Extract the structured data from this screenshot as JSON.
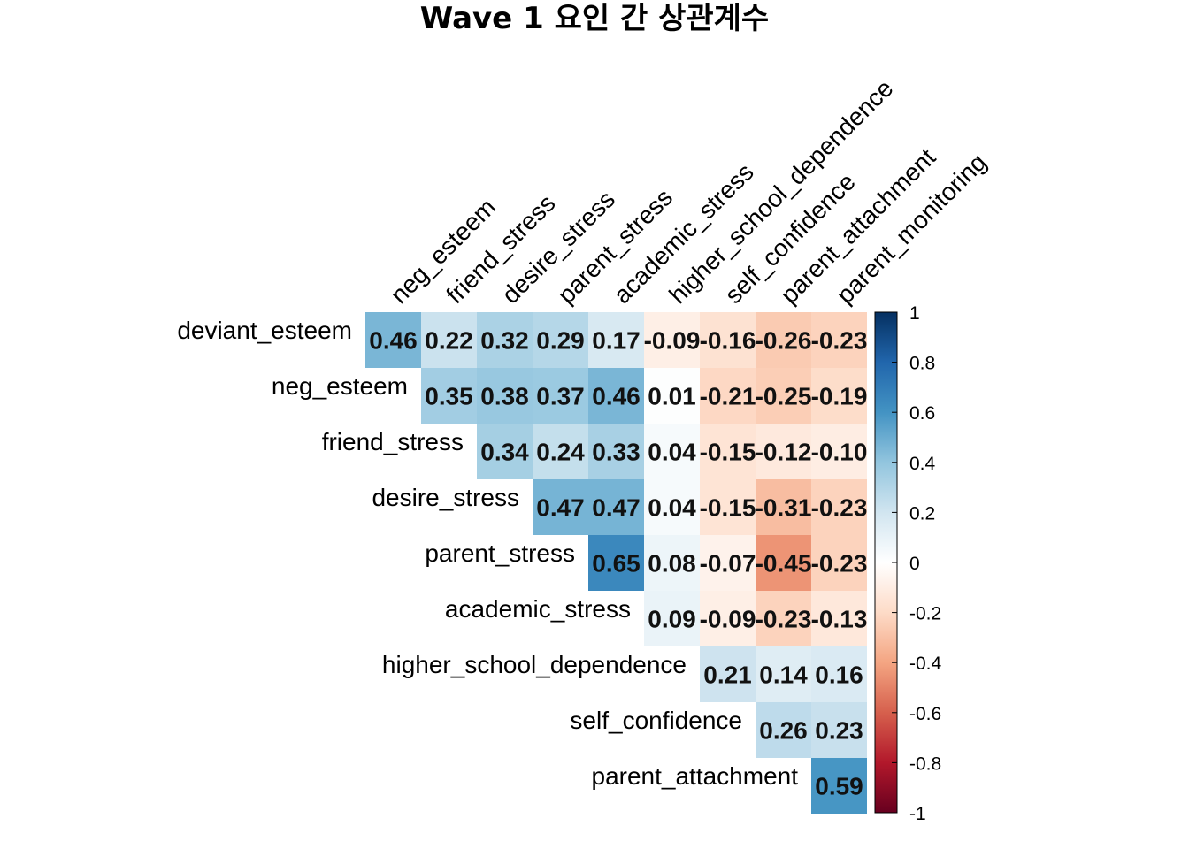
{
  "chart_data": {
    "type": "heatmap",
    "title": "Wave 1 요인 간 상관계수",
    "variables": [
      "deviant_esteem",
      "neg_esteem",
      "friend_stress",
      "desire_stress",
      "parent_stress",
      "academic_stress",
      "higher_school_dependence",
      "self_confidence",
      "parent_attachment",
      "parent_monitoring"
    ],
    "row_labels": [
      "deviant_esteem",
      "neg_esteem",
      "friend_stress",
      "desire_stress",
      "parent_stress",
      "academic_stress",
      "higher_school_dependence",
      "self_confidence",
      "parent_attachment"
    ],
    "column_labels": [
      "neg_esteem",
      "friend_stress",
      "desire_stress",
      "parent_stress",
      "academic_stress",
      "higher_school_dependence",
      "self_confidence",
      "parent_attachment",
      "parent_monitoring"
    ],
    "matrix_layout": "upper-triangle",
    "values": [
      [
        0.46,
        0.22,
        0.32,
        0.29,
        0.17,
        -0.09,
        -0.16,
        -0.26,
        -0.23
      ],
      [
        0.35,
        0.38,
        0.37,
        0.46,
        0.01,
        -0.21,
        -0.25,
        -0.19
      ],
      [
        0.34,
        0.24,
        0.33,
        0.04,
        -0.15,
        -0.12,
        -0.1
      ],
      [
        0.47,
        0.47,
        0.04,
        -0.15,
        -0.31,
        -0.23
      ],
      [
        0.65,
        0.08,
        -0.07,
        -0.45,
        -0.23
      ],
      [
        0.09,
        -0.09,
        -0.23,
        -0.13
      ],
      [
        0.21,
        0.14,
        0.16
      ],
      [
        0.26,
        0.23
      ],
      [
        0.59
      ]
    ],
    "cell_labels": [
      [
        "0.46",
        "0.22",
        "0.32",
        "0.29",
        "0.17",
        "-0.09",
        "-0.16",
        "-0.26",
        "-0.23"
      ],
      [
        "0.35",
        "0.38",
        "0.37",
        "0.46",
        "0.01",
        "-0.21",
        "-0.25",
        "-0.19"
      ],
      [
        "0.34",
        "0.24",
        "0.33",
        "0.04",
        "-0.15",
        "-0.12",
        "-0.10"
      ],
      [
        "0.47",
        "0.47",
        "0.04",
        "-0.15",
        "-0.31",
        "-0.23"
      ],
      [
        "0.65",
        "0.08",
        "-0.07",
        "-0.45",
        "-0.23"
      ],
      [
        "0.09",
        "-0.09",
        "-0.23",
        "-0.13"
      ],
      [
        "0.21",
        "0.14",
        "0.16"
      ],
      [
        "0.26",
        "0.23"
      ],
      [
        "0.59"
      ]
    ],
    "colorbar": {
      "range": [
        -1,
        1
      ],
      "ticks": [
        1,
        0.8,
        0.6,
        0.4,
        0.2,
        0,
        -0.2,
        -0.4,
        -0.6,
        -0.8,
        -1
      ],
      "tick_labels": [
        "1",
        "0.8",
        "0.6",
        "0.4",
        "0.2",
        "0",
        "-0.2",
        "-0.4",
        "-0.6",
        "-0.8",
        "-1"
      ],
      "palette": [
        "#67001F",
        "#B2182B",
        "#D6604D",
        "#F4A582",
        "#FDDBC7",
        "#FFFFFF",
        "#D1E5F0",
        "#92C5DE",
        "#4393C3",
        "#2166AC",
        "#053061"
      ]
    },
    "grid": false,
    "legend_position": "right"
  }
}
